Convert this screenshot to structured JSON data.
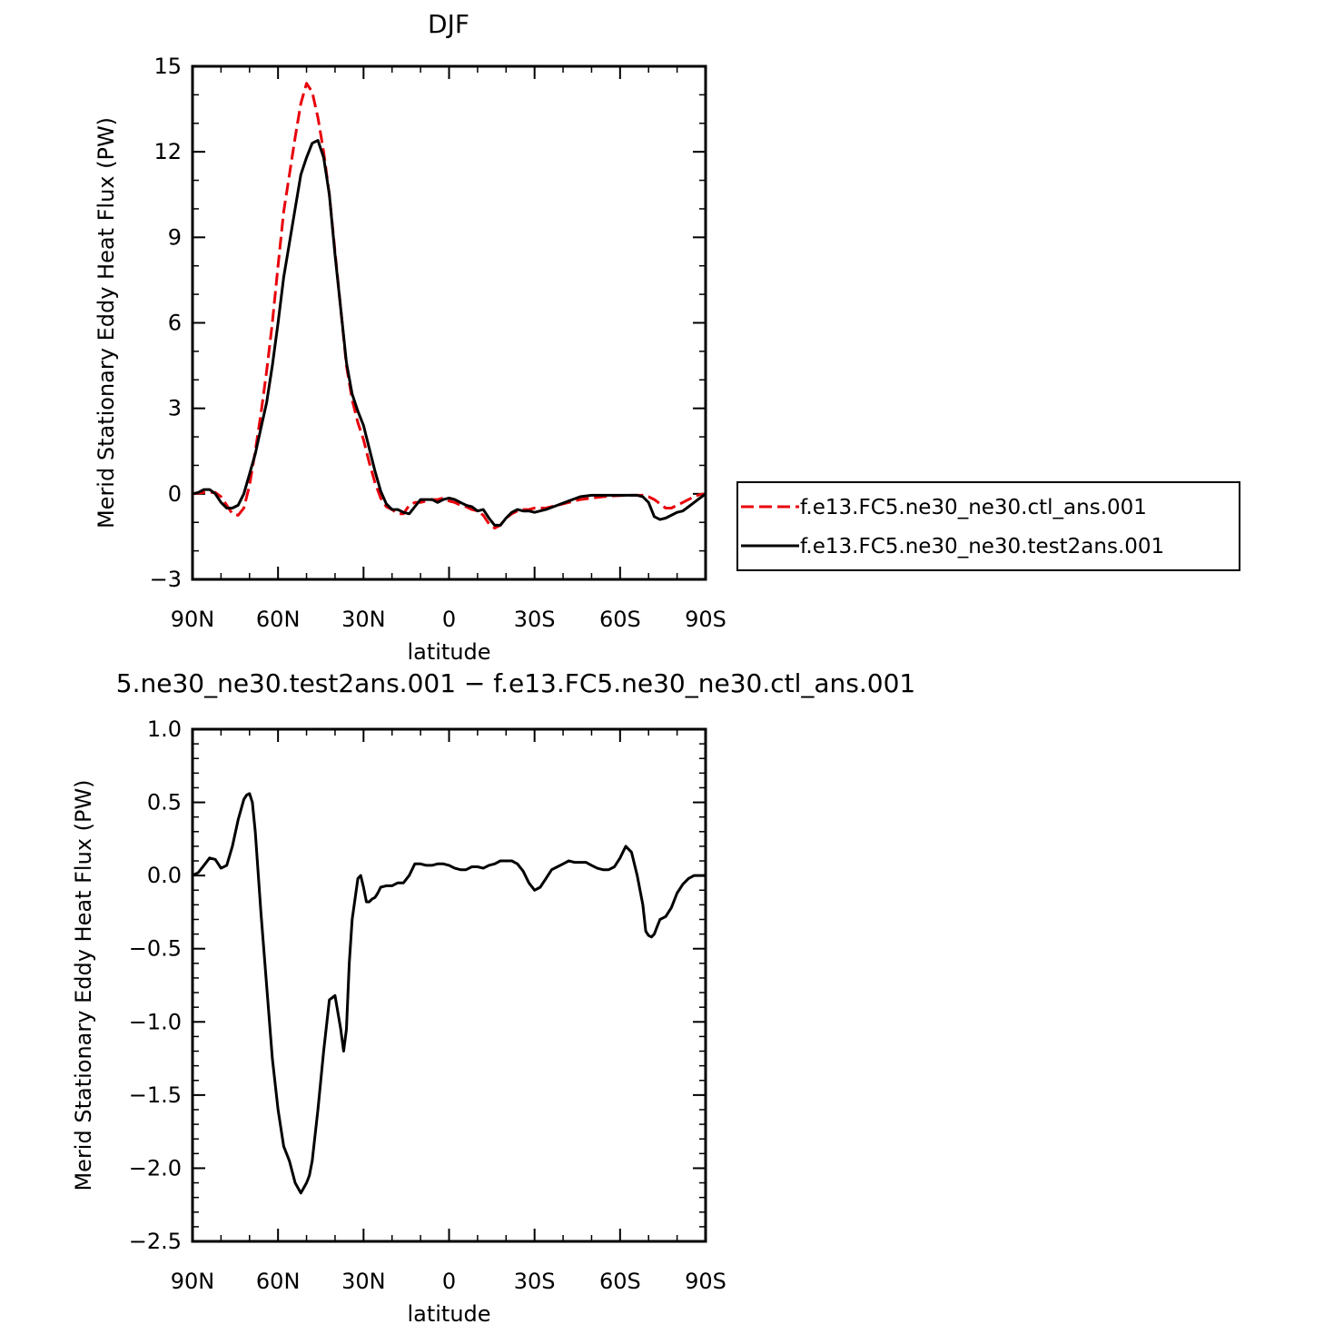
{
  "chart_data": [
    {
      "type": "line",
      "title": "DJF",
      "xlabel": "latitude",
      "ylabel": "Merid Stationary Eddy Heat Flux (PW)",
      "xlim": [
        90,
        -90
      ],
      "ylim": [
        -3,
        15
      ],
      "xticks": [
        90,
        60,
        30,
        0,
        -30,
        -60,
        -90
      ],
      "xtick_labels": [
        "90N",
        "60N",
        "30N",
        "0",
        "30S",
        "60S",
        "90S"
      ],
      "yticks": [
        -3,
        0,
        3,
        6,
        9,
        12,
        15
      ],
      "ytick_labels": [
        "−3",
        "0",
        "3",
        "6",
        "9",
        "12",
        "15"
      ],
      "grid": false,
      "legend_position": "right, outside the plot",
      "series": [
        {
          "name": "f.e13.FC5.ne30_ne30.ctl_ans.001",
          "color": "#e8000b",
          "dash": "dashed",
          "x": [
            90,
            86,
            82,
            80,
            78,
            76,
            74,
            72,
            70,
            68,
            66,
            64,
            62,
            60,
            58,
            56,
            54,
            52,
            50,
            48,
            46,
            44,
            42,
            40,
            38,
            36,
            34,
            32,
            30,
            28,
            26,
            24,
            22,
            20,
            18,
            16,
            14,
            12,
            10,
            8,
            6,
            4,
            2,
            0,
            -2,
            -4,
            -6,
            -8,
            -10,
            -12,
            -14,
            -16,
            -18,
            -20,
            -22,
            -24,
            -26,
            -28,
            -30,
            -34,
            -38,
            -42,
            -46,
            -50,
            -54,
            -58,
            -62,
            -66,
            -68,
            -70,
            -72,
            -74,
            -76,
            -78,
            -80,
            -82,
            -84,
            -86,
            -88,
            -90
          ],
          "y": [
            0.0,
            0.05,
            0.05,
            -0.1,
            -0.4,
            -0.7,
            -0.75,
            -0.5,
            0.3,
            1.5,
            2.8,
            4.3,
            6.0,
            8.0,
            9.9,
            11.2,
            12.5,
            13.7,
            14.4,
            14.1,
            13.2,
            12.0,
            10.5,
            8.5,
            6.5,
            4.5,
            3.3,
            2.5,
            1.9,
            1.1,
            0.4,
            -0.15,
            -0.45,
            -0.55,
            -0.7,
            -0.7,
            -0.4,
            -0.3,
            -0.3,
            -0.25,
            -0.2,
            -0.2,
            -0.15,
            -0.25,
            -0.3,
            -0.4,
            -0.45,
            -0.55,
            -0.6,
            -0.75,
            -1.05,
            -1.2,
            -1.1,
            -0.85,
            -0.7,
            -0.6,
            -0.55,
            -0.55,
            -0.5,
            -0.5,
            -0.4,
            -0.3,
            -0.2,
            -0.15,
            -0.1,
            -0.07,
            -0.05,
            -0.05,
            -0.05,
            -0.1,
            -0.2,
            -0.35,
            -0.5,
            -0.5,
            -0.4,
            -0.3,
            -0.2,
            -0.1,
            -0.02,
            0.0
          ]
        },
        {
          "name": "f.e13.FC5.ne30_ne30.test2ans.001",
          "color": "#000000",
          "dash": "solid",
          "x": [
            90,
            88,
            86,
            84,
            82,
            80,
            78,
            76,
            74,
            72,
            70,
            68,
            66,
            64,
            62,
            60,
            58,
            56,
            54,
            52,
            50,
            48,
            46,
            44,
            42,
            40,
            38,
            36,
            34,
            32,
            30,
            28,
            26,
            24,
            22,
            20,
            18,
            16,
            14,
            12,
            10,
            8,
            6,
            4,
            2,
            0,
            -2,
            -4,
            -6,
            -8,
            -10,
            -12,
            -14,
            -16,
            -18,
            -20,
            -22,
            -24,
            -26,
            -28,
            -30,
            -34,
            -38,
            -42,
            -46,
            -50,
            -54,
            -58,
            -62,
            -66,
            -68,
            -70,
            -72,
            -74,
            -76,
            -78,
            -80,
            -82,
            -84,
            -86,
            -88,
            -90
          ],
          "y": [
            0.0,
            0.05,
            0.15,
            0.15,
            0.0,
            -0.3,
            -0.5,
            -0.5,
            -0.4,
            0.0,
            0.7,
            1.4,
            2.3,
            3.2,
            4.5,
            6.0,
            7.6,
            8.8,
            10.0,
            11.2,
            11.8,
            12.3,
            12.4,
            11.8,
            10.5,
            8.4,
            6.5,
            4.6,
            3.5,
            2.9,
            2.4,
            1.6,
            0.8,
            0.1,
            -0.35,
            -0.55,
            -0.55,
            -0.65,
            -0.7,
            -0.45,
            -0.2,
            -0.2,
            -0.2,
            -0.3,
            -0.2,
            -0.15,
            -0.2,
            -0.3,
            -0.4,
            -0.45,
            -0.6,
            -0.55,
            -0.85,
            -1.1,
            -1.1,
            -0.85,
            -0.65,
            -0.55,
            -0.6,
            -0.6,
            -0.65,
            -0.55,
            -0.4,
            -0.25,
            -0.1,
            -0.05,
            -0.05,
            -0.05,
            -0.05,
            -0.05,
            -0.1,
            -0.3,
            -0.8,
            -0.9,
            -0.85,
            -0.75,
            -0.65,
            -0.6,
            -0.45,
            -0.3,
            -0.15,
            0.0
          ]
        }
      ]
    },
    {
      "type": "line",
      "title": "5.ne30_ne30.test2ans.001 − f.e13.FC5.ne30_ne30.ctl_ans.001",
      "xlabel": "latitude",
      "ylabel": "Merid Stationary Eddy Heat Flux (PW)",
      "xlim": [
        90,
        -90
      ],
      "ylim": [
        -2.5,
        1.0
      ],
      "xticks": [
        90,
        60,
        30,
        0,
        -30,
        -60,
        -90
      ],
      "xtick_labels": [
        "90N",
        "60N",
        "30N",
        "0",
        "30S",
        "60S",
        "90S"
      ],
      "yticks": [
        -2.5,
        -2.0,
        -1.5,
        -1.0,
        -0.5,
        0.0,
        0.5,
        1.0
      ],
      "ytick_labels": [
        "−2.5",
        "−2.0",
        "−1.5",
        "−1.0",
        "−0.5",
        "0.0",
        "0.5",
        "1.0"
      ],
      "grid": false,
      "series": [
        {
          "color": "#000000",
          "dash": "solid",
          "x": [
            90,
            88,
            86,
            84,
            82,
            80,
            78,
            76,
            74,
            72,
            71,
            70,
            69,
            68,
            66,
            64,
            62,
            60,
            58,
            56,
            54,
            52,
            50,
            49,
            48,
            46,
            44,
            42,
            40,
            38,
            37,
            36,
            35,
            34,
            32,
            31,
            30,
            29,
            28,
            27,
            26,
            25,
            24,
            22,
            20,
            18,
            16,
            14,
            12,
            10,
            8,
            6,
            4,
            2,
            0,
            -2,
            -4,
            -6,
            -8,
            -10,
            -12,
            -14,
            -16,
            -18,
            -20,
            -22,
            -24,
            -26,
            -28,
            -30,
            -32,
            -34,
            -36,
            -38,
            -40,
            -42,
            -44,
            -46,
            -48,
            -50,
            -52,
            -54,
            -56,
            -58,
            -60,
            -62,
            -64,
            -66,
            -68,
            -69,
            -70,
            -71,
            -72,
            -73,
            -74,
            -75,
            -76,
            -78,
            -80,
            -82,
            -84,
            -86,
            -88,
            -90
          ],
          "y": [
            0.0,
            0.02,
            0.07,
            0.12,
            0.11,
            0.05,
            0.07,
            0.2,
            0.38,
            0.52,
            0.55,
            0.56,
            0.5,
            0.3,
            -0.25,
            -0.75,
            -1.25,
            -1.6,
            -1.85,
            -1.95,
            -2.1,
            -2.17,
            -2.1,
            -2.05,
            -1.95,
            -1.6,
            -1.2,
            -0.85,
            -0.82,
            -1.05,
            -1.2,
            -1.05,
            -0.6,
            -0.3,
            -0.02,
            0.0,
            -0.08,
            -0.18,
            -0.18,
            -0.16,
            -0.15,
            -0.12,
            -0.08,
            -0.07,
            -0.07,
            -0.05,
            -0.05,
            0.0,
            0.08,
            0.08,
            0.07,
            0.07,
            0.08,
            0.08,
            0.07,
            0.05,
            0.04,
            0.04,
            0.06,
            0.06,
            0.05,
            0.07,
            0.08,
            0.1,
            0.1,
            0.1,
            0.08,
            0.03,
            -0.05,
            -0.1,
            -0.08,
            -0.02,
            0.04,
            0.06,
            0.08,
            0.1,
            0.09,
            0.09,
            0.09,
            0.07,
            0.05,
            0.04,
            0.04,
            0.06,
            0.12,
            0.2,
            0.16,
            0.0,
            -0.2,
            -0.38,
            -0.41,
            -0.42,
            -0.4,
            -0.35,
            -0.3,
            -0.29,
            -0.28,
            -0.22,
            -0.12,
            -0.06,
            -0.02,
            0.0,
            0.0,
            0.0
          ]
        }
      ]
    }
  ]
}
